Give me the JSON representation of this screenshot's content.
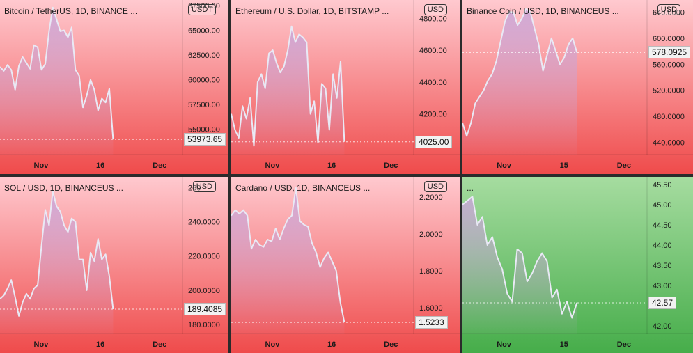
{
  "colors": {
    "bear_top": "#ffc9cf",
    "bear_bottom": "#ef4b4b",
    "bull_top": "#a6dca0",
    "bull_bottom": "#46ad4a",
    "line": "#e9e9f5",
    "fill": "#c9a5d8",
    "axis_text": "#1a1a1a",
    "divider": "#2b2b2b"
  },
  "chart_data": [
    {
      "type": "area",
      "title": "Bitcoin / TetherUS, 1D, BINANCE",
      "title_suffix": "...",
      "currency": "USDT",
      "theme": "bear",
      "ylim": [
        53000,
        67500
      ],
      "y_ticks": [
        "67500.00",
        "65000.00",
        "62500.00",
        "60000.00",
        "57500.00",
        "55000.00"
      ],
      "x_ticks": [
        "Nov",
        "16",
        "Dec"
      ],
      "last_value": "53973.65",
      "values": [
        61300,
        60900,
        61500,
        61000,
        59000,
        61400,
        62300,
        61700,
        61100,
        63500,
        63300,
        61000,
        61600,
        64900,
        67300,
        66100,
        64900,
        65000,
        64300,
        65300,
        61000,
        60400,
        57200,
        58400,
        60000,
        59000,
        56900,
        58100,
        57700,
        59100,
        53974
      ]
    },
    {
      "type": "area",
      "title": "Ethereum / U.S. Dollar, 1D, BITSTAMP",
      "title_suffix": "...",
      "currency": "USD",
      "theme": "bear",
      "ylim": [
        3980,
        4880
      ],
      "y_ticks": [
        "4800.00",
        "4600.00",
        "4400.00",
        "4200.00",
        "4025.00"
      ],
      "x_ticks": [
        "Nov",
        "16",
        "Dec"
      ],
      "last_value": "4025.00",
      "values": [
        4200,
        4100,
        4050,
        4250,
        4170,
        4300,
        4000,
        4400,
        4450,
        4360,
        4580,
        4600,
        4520,
        4460,
        4500,
        4600,
        4750,
        4650,
        4700,
        4680,
        4650,
        4200,
        4280,
        4020,
        4390,
        4360,
        4100,
        4450,
        4300,
        4530,
        4025
      ]
    },
    {
      "type": "area",
      "title": "Binance Coin / USD, 1D, BINANCEUS",
      "title_suffix": "...",
      "currency": "USD",
      "theme": "bear",
      "ylim": [
        430,
        650
      ],
      "y_ticks": [
        "640.0000",
        "600.0000",
        "578.0925",
        "560.0000",
        "520.0000",
        "480.0000",
        "440.0000"
      ],
      "x_ticks": [
        "Nov",
        "15",
        "Dec"
      ],
      "last_value": "578.0925",
      "values": [
        470,
        450,
        470,
        500,
        510,
        520,
        535,
        545,
        565,
        595,
        625,
        640,
        640,
        620,
        630,
        645,
        640,
        615,
        590,
        550,
        575,
        600,
        580,
        560,
        570,
        590,
        600,
        578
      ]
    },
    {
      "type": "area",
      "title": "SOL / USD, 1D, BINANCEUS",
      "title_suffix": "...",
      "currency": "USD",
      "theme": "bear",
      "ylim": [
        178,
        263
      ],
      "y_ticks": [
        "260",
        "240.0000",
        "220.0000",
        "200.0000",
        "189.4085",
        "180.0000"
      ],
      "x_ticks": [
        "Nov",
        "16",
        "Dec"
      ],
      "last_value": "189.4085",
      "values": [
        195,
        197,
        201,
        206,
        196,
        185,
        193,
        198,
        195,
        201,
        203,
        226,
        247,
        238,
        258,
        249,
        246,
        238,
        234,
        242,
        240,
        218,
        218,
        200,
        222,
        217,
        230,
        218,
        221,
        208,
        189
      ]
    },
    {
      "type": "area",
      "title": "Cardano / USD, 1D, BINANCEUS",
      "title_suffix": "...",
      "currency": "USD",
      "theme": "bear",
      "ylim": [
        1.49,
        2.28
      ],
      "y_ticks": [
        "2.2000",
        "2.0000",
        "1.8000",
        "1.6000",
        "1.5233"
      ],
      "x_ticks": [
        "Nov",
        "16",
        "Dec"
      ],
      "last_value": "1.5233",
      "values": [
        2.1,
        2.13,
        2.11,
        2.13,
        2.1,
        1.92,
        1.97,
        1.94,
        1.93,
        1.97,
        1.96,
        2.03,
        1.97,
        2.03,
        2.08,
        2.1,
        2.25,
        2.07,
        2.05,
        2.04,
        1.95,
        1.9,
        1.82,
        1.87,
        1.9,
        1.85,
        1.8,
        1.63,
        1.52
      ]
    },
    {
      "type": "area",
      "title": "",
      "title_suffix": "...",
      "currency": "",
      "theme": "bull",
      "ylim": [
        41.95,
        45.55
      ],
      "y_ticks": [
        "45.50",
        "45.00",
        "44.50",
        "44.00",
        "43.50",
        "43.00",
        "42.57",
        "42.00"
      ],
      "x_ticks": [
        "Nov",
        "15",
        "Dec"
      ],
      "last_value": "42.57",
      "values": [
        45.0,
        45.1,
        45.2,
        44.5,
        44.7,
        44.0,
        44.2,
        43.7,
        43.4,
        42.8,
        42.6,
        43.9,
        43.8,
        43.1,
        43.3,
        43.6,
        43.8,
        43.6,
        42.7,
        42.9,
        42.3,
        42.6,
        42.2,
        42.57
      ]
    }
  ]
}
